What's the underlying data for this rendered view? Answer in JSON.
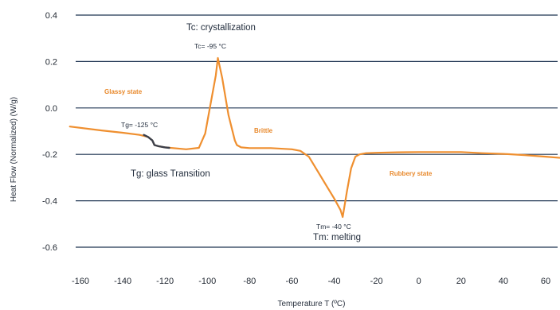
{
  "chart_data": {
    "type": "line",
    "title": "",
    "xlabel": "Temperature T (ºC)",
    "ylabel": "Heat Flow (Normalized) (W/g)",
    "xlim": [
      -165,
      67
    ],
    "ylim": [
      -0.66,
      0.42
    ],
    "x_ticks": [
      -160,
      -140,
      -120,
      -100,
      -80,
      -60,
      -40,
      -20,
      0,
      20,
      40,
      60
    ],
    "y_ticks": [
      0.4,
      0.2,
      0.0,
      -0.2,
      -0.4,
      -0.6
    ],
    "y_tick_labels": [
      "0.4",
      "0.2",
      "0.0",
      "-0.2",
      "-0.4",
      "-0.6"
    ],
    "grid": "horizontal",
    "legend": "none",
    "colors": {
      "curve": "#ef8f2f",
      "glass_transition_segment": "#3b3f4a",
      "grid": "#1f3552"
    },
    "series": [
      {
        "x": [
          -165,
          -150,
          -140,
          -132,
          -128,
          -126,
          -125,
          -123,
          -120,
          -110,
          -104,
          -101,
          -99,
          -96,
          -95,
          -93,
          -90,
          -87,
          -86,
          -84,
          -80,
          -70,
          -60,
          -56,
          -52,
          -48,
          -44,
          -40,
          -37,
          -36,
          -34,
          -32,
          -30,
          -28,
          -25,
          -20,
          -10,
          0,
          10,
          20,
          30,
          40,
          50,
          60,
          67
        ],
        "y": [
          -0.08,
          -0.097,
          -0.107,
          -0.116,
          -0.125,
          -0.14,
          -0.16,
          -0.165,
          -0.17,
          -0.178,
          -0.172,
          -0.11,
          -0.01,
          0.14,
          0.215,
          0.13,
          -0.03,
          -0.14,
          -0.16,
          -0.17,
          -0.173,
          -0.173,
          -0.178,
          -0.185,
          -0.21,
          -0.27,
          -0.33,
          -0.39,
          -0.44,
          -0.47,
          -0.36,
          -0.26,
          -0.21,
          -0.2,
          -0.195,
          -0.193,
          -0.191,
          -0.19,
          -0.19,
          -0.19,
          -0.195,
          -0.198,
          -0.203,
          -0.21,
          -0.215
        ]
      }
    ],
    "glass_transition_segment": {
      "x": [
        -130,
        -128,
        -126,
        -125,
        -123,
        -120,
        -118
      ],
      "y": [
        -0.116,
        -0.125,
        -0.14,
        -0.16,
        -0.165,
        -0.17,
        -0.172
      ]
    },
    "annotations": {
      "tc_title": "Tc: crystallization",
      "tc_value": "Tc= -95 °C",
      "glassy": "Glassy state",
      "tg_value": "Tg= -125 °C",
      "brittle": "Brittle",
      "tg_title": "Tg: glass Transition",
      "rubbery": "Rubbery state",
      "tm_value": "Tm= -40 °C",
      "tm_title": "Tm: melting"
    }
  }
}
